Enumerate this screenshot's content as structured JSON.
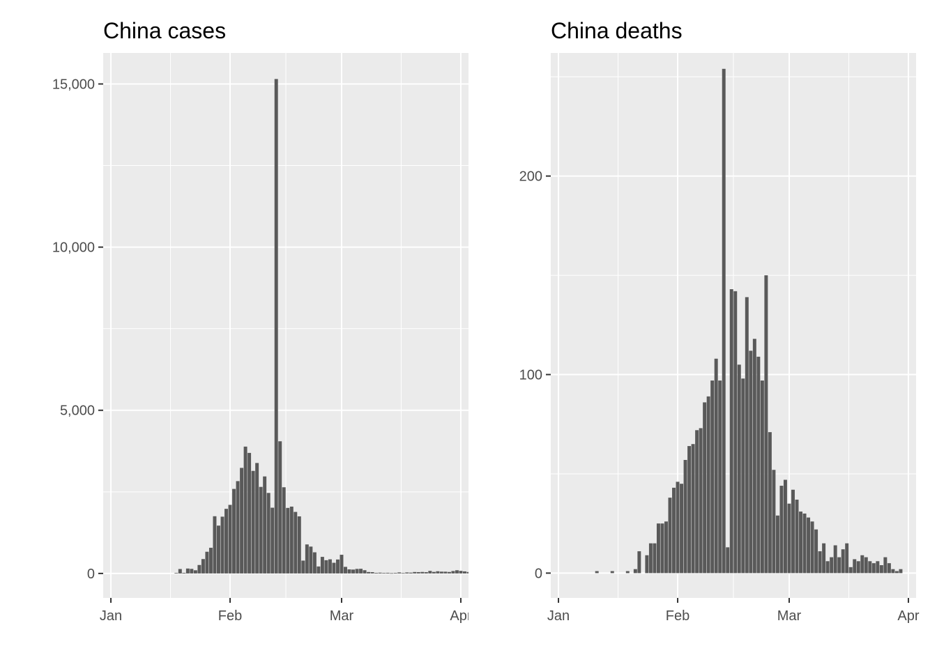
{
  "chart_data": [
    {
      "type": "bar",
      "title": "China cases",
      "xlabel": "",
      "ylabel": "",
      "x_start": "2020-01-01",
      "xlim": [
        "2019-12-30",
        "2020-04-03"
      ],
      "ylim": [
        -750,
        15950
      ],
      "yticks": [
        0,
        5000,
        10000,
        15000
      ],
      "ytick_labels": [
        "0",
        "5,000",
        "10,000",
        "15,000"
      ],
      "xticks": [
        "2020-01-01",
        "2020-02-01",
        "2020-03-01",
        "2020-04-01"
      ],
      "xtick_labels": [
        "Jan",
        "Feb",
        "Mar",
        "Apr"
      ],
      "grid": true,
      "bar_color": "#595959",
      "panel_background": "#ebebeb",
      "values": [
        0,
        0,
        0,
        0,
        0,
        0,
        0,
        0,
        0,
        0,
        0,
        0,
        0,
        0,
        0,
        0,
        0,
        17,
        136,
        19,
        151,
        140,
        97,
        259,
        441,
        665,
        787,
        1753,
        1466,
        1740,
        1980,
        2102,
        2590,
        2829,
        3235,
        3887,
        3694,
        3143,
        3385,
        2652,
        2973,
        2467,
        2015,
        15152,
        4050,
        2641,
        2008,
        2048,
        1886,
        1749,
        394,
        889,
        823,
        648,
        214,
        508,
        406,
        433,
        327,
        427,
        573,
        202,
        125,
        119,
        139,
        143,
        99,
        44,
        40,
        19,
        24,
        15,
        20,
        11,
        18,
        31,
        13,
        30,
        25,
        44,
        41,
        46,
        39,
        78,
        47,
        67,
        55,
        54,
        45,
        74,
        98,
        79,
        63,
        45
      ]
    },
    {
      "type": "bar",
      "title": "China deaths",
      "xlabel": "",
      "ylabel": "",
      "x_start": "2020-01-01",
      "xlim": [
        "2019-12-30",
        "2020-04-03"
      ],
      "ylim": [
        -12.5,
        262
      ],
      "yticks": [
        0,
        100,
        200
      ],
      "ytick_labels": [
        "0",
        "100",
        "200"
      ],
      "xticks": [
        "2020-01-01",
        "2020-02-01",
        "2020-03-01",
        "2020-04-01"
      ],
      "xtick_labels": [
        "Jan",
        "Feb",
        "Mar",
        "Apr"
      ],
      "grid": true,
      "bar_color": "#595959",
      "panel_background": "#ebebeb",
      "values": [
        0,
        0,
        0,
        0,
        0,
        0,
        0,
        0,
        0,
        0,
        1,
        0,
        0,
        0,
        1,
        0,
        0,
        0,
        1,
        0,
        2,
        11,
        0,
        9,
        15,
        15,
        25,
        25,
        26,
        38,
        43,
        46,
        45,
        57,
        64,
        65,
        72,
        73,
        86,
        89,
        97,
        108,
        97,
        254,
        13,
        143,
        142,
        105,
        98,
        139,
        112,
        118,
        109,
        97,
        150,
        71,
        52,
        29,
        44,
        47,
        35,
        42,
        37,
        31,
        30,
        28,
        26,
        22,
        11,
        15,
        6,
        8,
        14,
        8,
        12,
        15,
        3,
        7,
        6,
        9,
        8,
        6,
        5,
        6,
        4,
        8,
        5,
        2,
        1,
        2
      ]
    }
  ]
}
